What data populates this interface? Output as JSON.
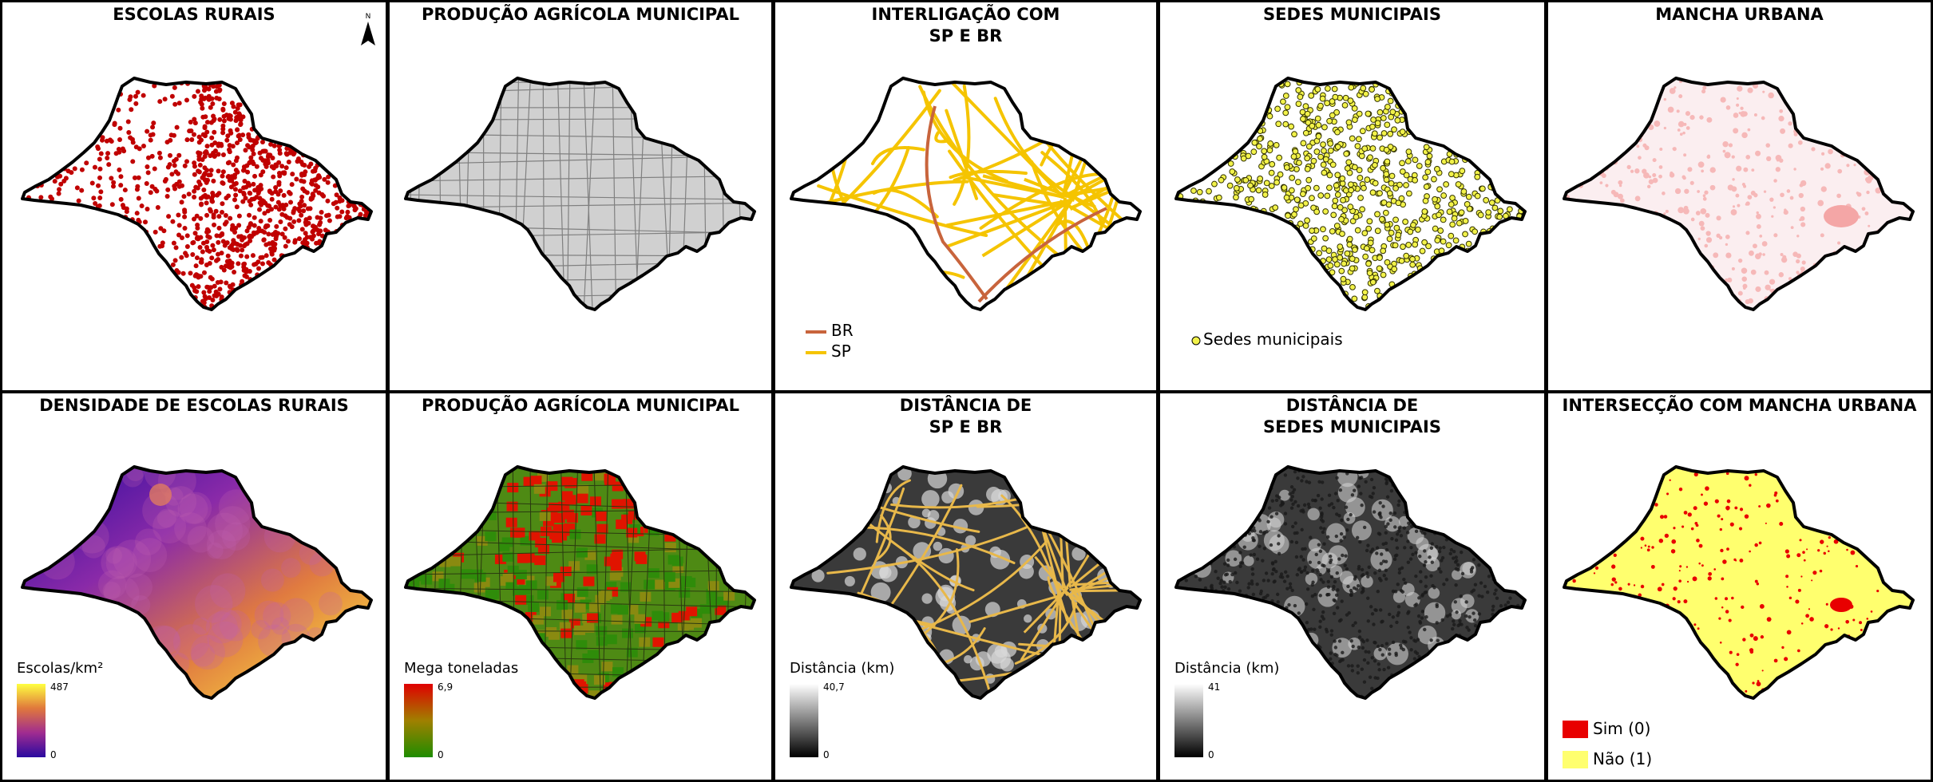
{
  "panels": [
    {
      "id": "escolas-rurais",
      "title": "ESCOLAS RURAIS",
      "style": "points",
      "point_color": "#c00000"
    },
    {
      "id": "producao-agricola-municipal-top",
      "title": "PRODUÇÃO AGRÍCOLA MUNICIPAL",
      "style": "municipalities",
      "fill": "#d0d0d0",
      "line": "#808080"
    },
    {
      "id": "interligacao-sp-br",
      "title": "INTERLIGAÇÃO COM\nSP E BR",
      "style": "roads",
      "legend": [
        {
          "label": "BR",
          "color": "#c8643c"
        },
        {
          "label": "SP",
          "color": "#f5c400"
        }
      ]
    },
    {
      "id": "sedes-municipais",
      "title": "SEDES MUNICIPAIS",
      "style": "sedes",
      "legend": [
        {
          "label": "Sedes municipais",
          "color": "#f2f24a"
        }
      ]
    },
    {
      "id": "mancha-urbana",
      "title": "MANCHA URBANA",
      "style": "urban",
      "fill": "#f6b8b8"
    },
    {
      "id": "densidade-escolas-rurais",
      "title": "DENSIDADE DE ESCOLAS RURAIS",
      "style": "density",
      "ramp": {
        "title": "Escolas/km²",
        "max": "487",
        "min": "0",
        "colors": [
          "#ffff40",
          "#e0783c",
          "#a02c90",
          "#2a0aa0"
        ]
      }
    },
    {
      "id": "producao-agricola-municipal-bottom",
      "title": "PRODUÇÃO AGRÍCOLA MUNICIPAL",
      "style": "production",
      "ramp": {
        "title": "Mega toneladas",
        "max": "6,9",
        "min": "0",
        "colors": [
          "#e00000",
          "#a08000",
          "#1e8c00"
        ]
      }
    },
    {
      "id": "distancia-sp-br",
      "title": "DISTÂNCIA DE\nSP E BR",
      "style": "distance-roads",
      "ramp": {
        "title": "Distância (km)",
        "max": "40,7",
        "min": "0",
        "colors": [
          "#ffffff",
          "#000000"
        ]
      }
    },
    {
      "id": "distancia-sedes-municipais",
      "title": "DISTÂNCIA DE\nSEDES MUNICIPAIS",
      "style": "distance-sedes",
      "ramp": {
        "title": "Distância (km)",
        "max": "41",
        "min": "0",
        "colors": [
          "#ffffff",
          "#000000"
        ]
      }
    },
    {
      "id": "interseccao-mancha-urbana",
      "title": "INTERSECÇÃO COM MANCHA URBANA",
      "style": "intersection",
      "legend": [
        {
          "label": "Sim (0)",
          "color": "#e80000"
        },
        {
          "label": "Não (1)",
          "color": "#ffff6e"
        }
      ]
    }
  ],
  "north_arrow": {
    "label": "N"
  }
}
